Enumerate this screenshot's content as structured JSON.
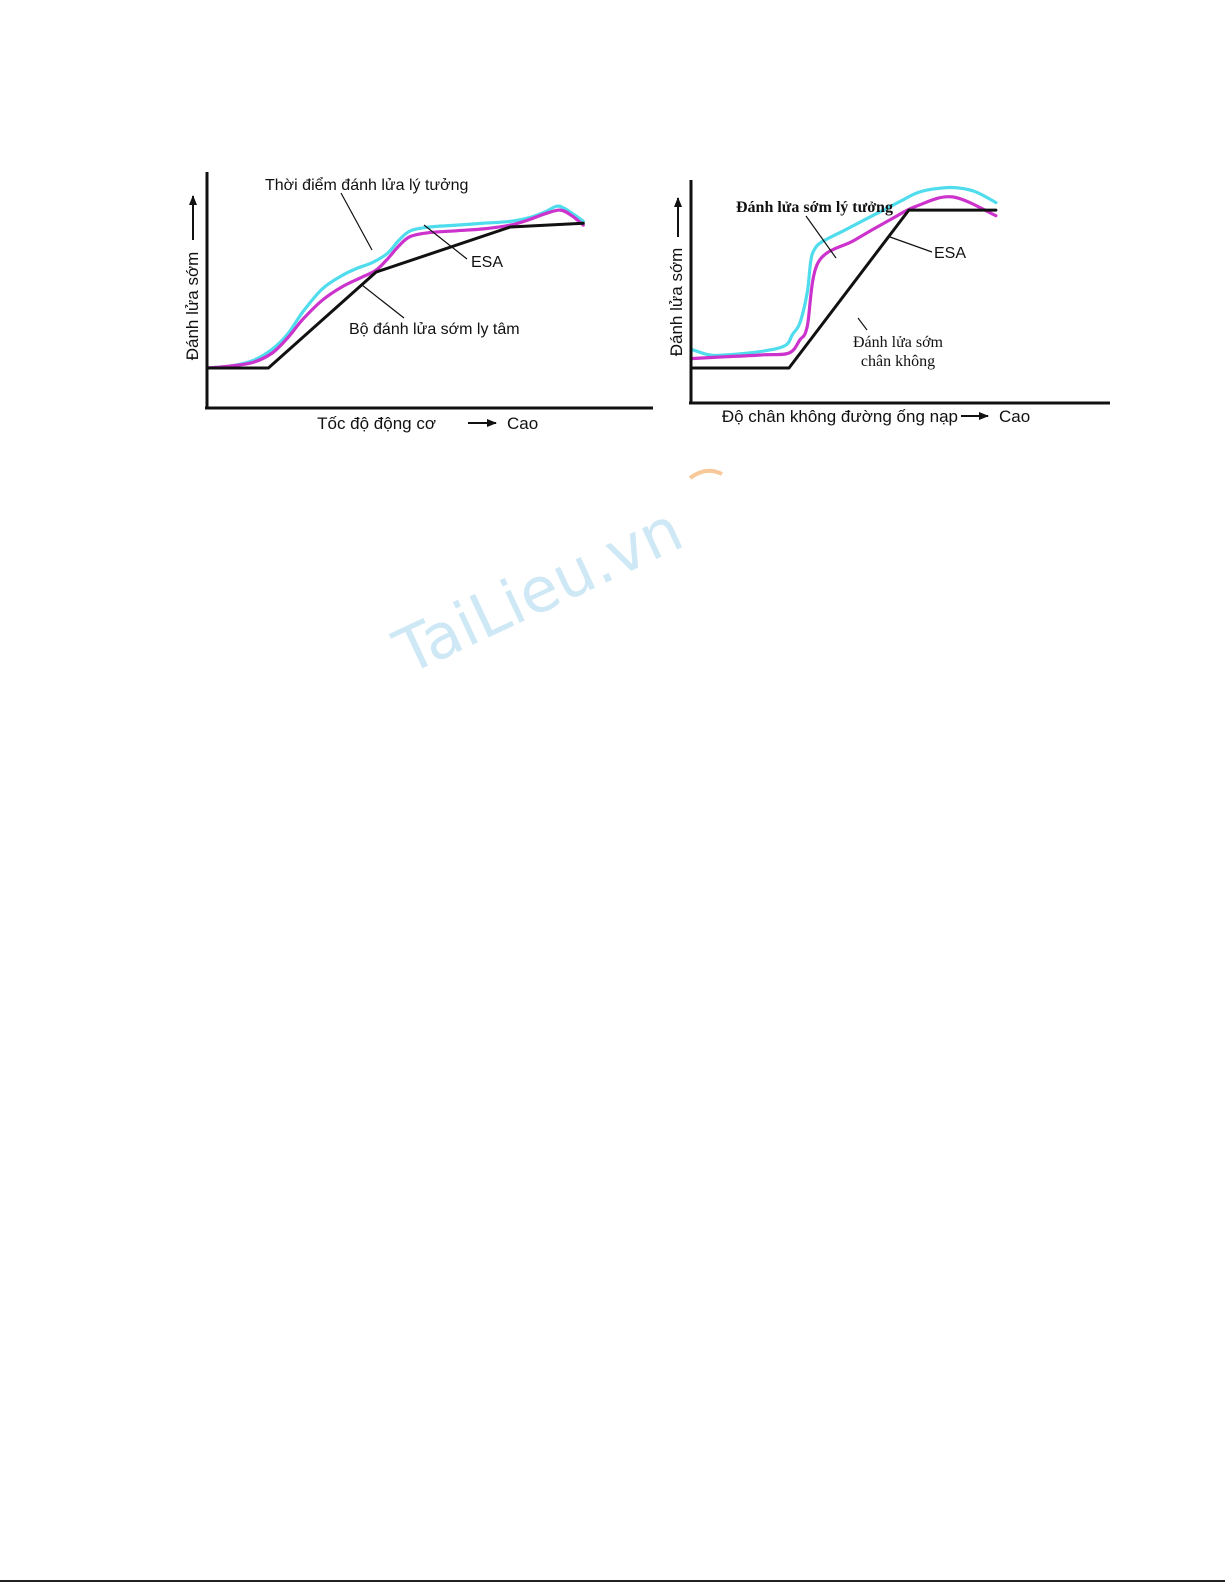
{
  "watermark": "TaiLieu.vn",
  "colors": {
    "ideal": "#4fdcec",
    "esa": "#cc33cc",
    "mechanical": "#111111",
    "axis": "#111111",
    "watermark": "#cfe8f6",
    "watermark_accent": "#f7c99a"
  },
  "chart_data": [
    {
      "type": "line",
      "xlabel": "Tốc độ động cơ",
      "xlabel_high": "Cao",
      "ylabel": "Đánh lửa sớm",
      "xlim": [
        0,
        100
      ],
      "ylim": [
        0,
        100
      ],
      "grid": false,
      "series": [
        {
          "name": "Thời điểm đánh lửa lý tưởng",
          "color": "#4fdcec",
          "x": [
            0,
            6,
            12,
            17,
            21,
            25,
            30,
            35,
            39,
            43,
            47,
            50,
            53,
            58,
            65,
            72,
            79,
            84,
            88,
            91,
            93,
            96,
            98
          ],
          "y": [
            0,
            1,
            4,
            10,
            18,
            30,
            42,
            49,
            53,
            56,
            61,
            68,
            73,
            75,
            76,
            77,
            78,
            80,
            83,
            86,
            85,
            81,
            78
          ]
        },
        {
          "name": "ESA",
          "color": "#cc33cc",
          "x": [
            0,
            6,
            12,
            17,
            21,
            25,
            30,
            35,
            40,
            44,
            47,
            50,
            53,
            58,
            65,
            72,
            79,
            84,
            88,
            92,
            95,
            98
          ],
          "y": [
            0,
            1,
            3,
            8,
            16,
            26,
            36,
            43,
            48,
            52,
            58,
            65,
            70,
            72,
            73,
            74,
            76,
            79,
            82,
            84,
            81,
            76
          ]
        },
        {
          "name": "Bộ đánh lửa sớm ly tâm",
          "color": "#111111",
          "x": [
            0,
            16,
            44,
            79,
            98
          ],
          "y": [
            0,
            0,
            51,
            75,
            77
          ]
        }
      ]
    },
    {
      "type": "line",
      "xlabel": "Độ chân không đường ống nạp",
      "xlabel_high": "Cao",
      "ylabel": "Đánh lửa sớm",
      "xlim": [
        0,
        100
      ],
      "ylim": [
        0,
        100
      ],
      "grid": false,
      "series": [
        {
          "name": "Đánh lửa sớm lý tưởng",
          "color": "#4fdcec",
          "x": [
            0,
            5,
            10,
            20,
            26,
            28,
            30,
            32,
            33,
            34,
            36,
            42,
            50,
            58,
            62,
            66,
            72,
            78,
            84
          ],
          "y": [
            10,
            7,
            7,
            9,
            12,
            18,
            24,
            40,
            57,
            63,
            67,
            73,
            81,
            89,
            93,
            95,
            96,
            94,
            88
          ]
        },
        {
          "name": "ESA",
          "color": "#cc33cc",
          "x": [
            0,
            10,
            20,
            27,
            30,
            32,
            35,
            45,
            55,
            62,
            72,
            84
          ],
          "y": [
            5,
            6,
            7,
            8,
            15,
            22,
            56,
            68,
            79,
            86,
            91,
            81
          ]
        },
        {
          "name": "Đánh lửa sớm chân không",
          "color": "#111111",
          "x": [
            0,
            27,
            60,
            84
          ],
          "y": [
            0,
            0,
            84,
            84
          ]
        }
      ]
    }
  ],
  "annotations": {
    "left_ideal": "Thời điểm đánh lửa lý tưởng",
    "left_esa": "ESA",
    "left_mech": "Bộ đánh lửa sớm ly tâm",
    "right_ideal": "Đánh lửa sớm lý tưởng",
    "right_esa": "ESA",
    "right_vac_1": "Đánh lửa sớm",
    "right_vac_2": "chân không"
  }
}
